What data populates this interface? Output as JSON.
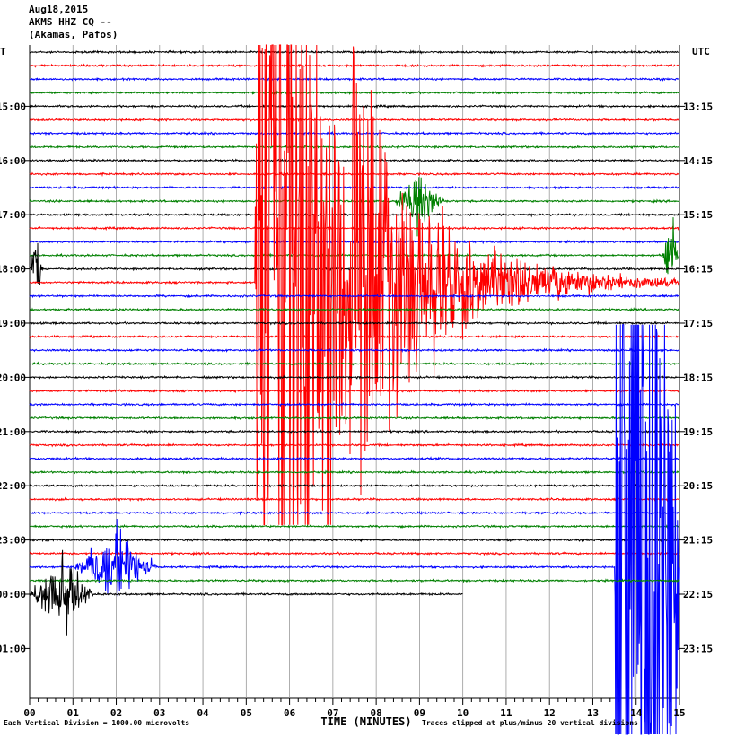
{
  "header": {
    "date": "Aug18,2015",
    "station": "AKMS HHZ CQ --",
    "location": "(Akamas, Pafos)"
  },
  "chart_data": {
    "type": "line",
    "title": "Aug18,2015",
    "left_axis_title": "T",
    "right_axis_title": "UTC",
    "xlabel": "TIME (MINUTES)",
    "x_ticks": [
      "00",
      "01",
      "02",
      "03",
      "04",
      "05",
      "06",
      "07",
      "08",
      "09",
      "10",
      "11",
      "12",
      "13",
      "14",
      "15"
    ],
    "xlim": [
      0,
      15
    ],
    "left_time_labels": [
      "15:00",
      "16:00",
      "17:00",
      "18:00",
      "19:00",
      "20:00",
      "21:00",
      "22:00",
      "23:00",
      "00:00",
      "01:00"
    ],
    "right_time_labels": [
      "13:15",
      "14:15",
      "15:15",
      "16:15",
      "17:15",
      "18:15",
      "19:15",
      "20:15",
      "21:15",
      "22:15",
      "23:15"
    ],
    "trace_colors": [
      "#000000",
      "#ff0000",
      "#0000ff",
      "#008000"
    ],
    "trace_count": 41,
    "traces_per_hour": 4,
    "minutes_per_trace": 15,
    "events": [
      {
        "trace": 11,
        "start_min": 8.4,
        "end_min": 9.6,
        "peak_divisions": 6,
        "color": "#000000"
      },
      {
        "trace": 15,
        "start_min": 14.6,
        "end_min": 15.0,
        "peak_divisions": 10,
        "color": "#008000"
      },
      {
        "trace": 16,
        "start_min": 0.0,
        "end_min": 0.3,
        "peak_divisions": 10,
        "color": "#000000"
      },
      {
        "trace": 17,
        "start_min": 5.2,
        "end_min": 15.0,
        "peak_divisions": 20,
        "onset_min": 5.2,
        "color": "#ff0000"
      },
      {
        "trace": 38,
        "start_min": 1.0,
        "end_min": 3.0,
        "peak_divisions": 8,
        "color": "#0000ff"
      },
      {
        "trace": 38,
        "start_min": 13.5,
        "end_min": 15.0,
        "peak_divisions": 20,
        "onset_min": 13.5,
        "color": "#008000"
      },
      {
        "trace": 40,
        "start_min": 0.0,
        "end_min": 1.5,
        "peak_divisions": 8,
        "color": "#000000"
      }
    ],
    "last_trace_end_min": 10.0,
    "grid": true,
    "footer_left": "Each Vertical Division = 1000.00 microvolts",
    "footer_right": "Traces clipped at plus/minus 20 vertical divisions"
  }
}
